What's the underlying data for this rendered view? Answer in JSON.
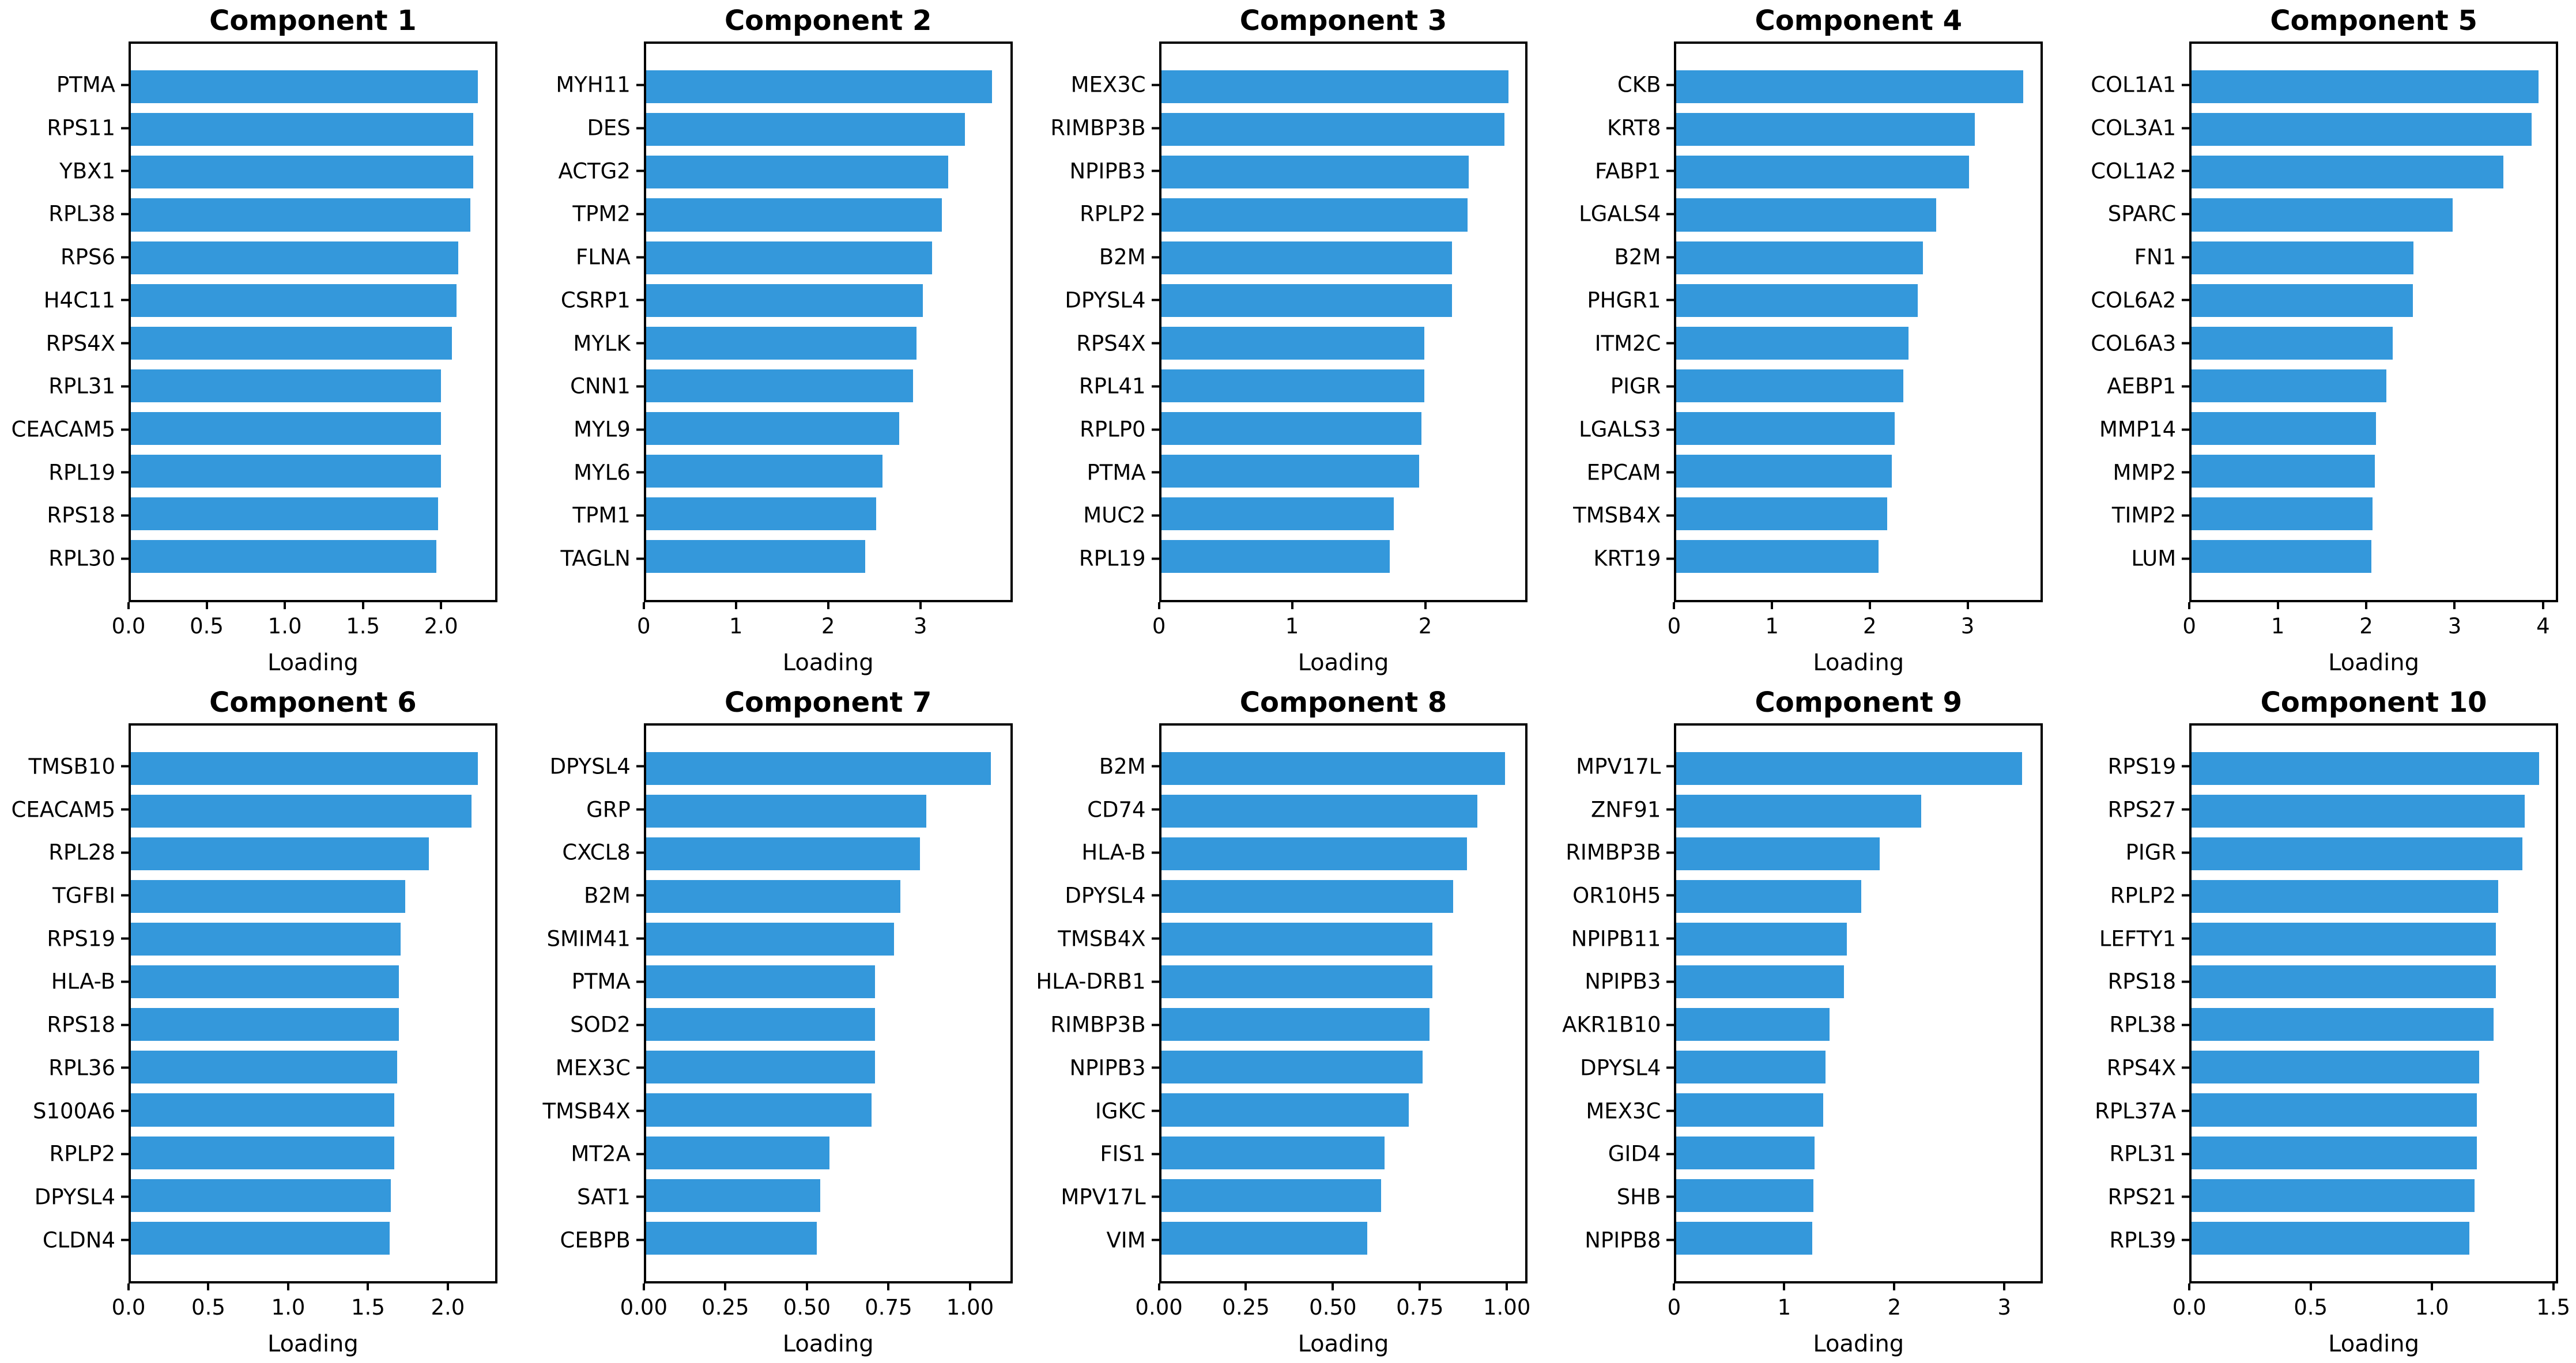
{
  "figure": {
    "background_color": "#ffffff",
    "bar_color": "#3498db",
    "text_color": "#000000",
    "xlabel": "Loading"
  },
  "chart_data": [
    {
      "type": "bar",
      "title": "Component 1",
      "orientation": "horizontal",
      "categories": [
        "PTMA",
        "RPS11",
        "YBX1",
        "RPL38",
        "RPS6",
        "H4C11",
        "RPS4X",
        "RPL31",
        "CEACAM5",
        "RPL19",
        "RPS18",
        "RPL30"
      ],
      "values": [
        2.25,
        2.22,
        2.22,
        2.2,
        2.12,
        2.11,
        2.08,
        2.01,
        2.01,
        2.01,
        1.99,
        1.98
      ],
      "xlabel": "Loading",
      "xticks": [
        0.0,
        0.5,
        1.0,
        1.5,
        2.0
      ],
      "xtick_labels": [
        "0.0",
        "0.5",
        "1.0",
        "1.5",
        "2.0"
      ],
      "xlim": [
        0,
        2.36
      ],
      "grid": false
    },
    {
      "type": "bar",
      "title": "Component 2",
      "orientation": "horizontal",
      "categories": [
        "MYH11",
        "DES",
        "ACTG2",
        "TPM2",
        "FLNA",
        "CSRP1",
        "MYLK",
        "CNN1",
        "MYL9",
        "MYL6",
        "TPM1",
        "TAGLN"
      ],
      "values": [
        3.8,
        3.5,
        3.32,
        3.25,
        3.14,
        3.04,
        2.97,
        2.93,
        2.78,
        2.6,
        2.53,
        2.41
      ],
      "xlabel": "Loading",
      "xticks": [
        0,
        1,
        2,
        3
      ],
      "xtick_labels": [
        "0",
        "1",
        "2",
        "3"
      ],
      "xlim": [
        0,
        4.0
      ],
      "grid": false
    },
    {
      "type": "bar",
      "title": "Component 3",
      "orientation": "horizontal",
      "categories": [
        "MEX3C",
        "RIMBP3B",
        "NPIPB3",
        "RPLP2",
        "B2M",
        "DPYSL4",
        "RPS4X",
        "RPL41",
        "RPLP0",
        "PTMA",
        "MUC2",
        "RPL19"
      ],
      "values": [
        2.64,
        2.61,
        2.34,
        2.33,
        2.21,
        2.21,
        2.0,
        2.0,
        1.98,
        1.96,
        1.77,
        1.74
      ],
      "xlabel": "Loading",
      "xticks": [
        0,
        1,
        2
      ],
      "xtick_labels": [
        "0",
        "1",
        "2"
      ],
      "xlim": [
        0,
        2.77
      ],
      "grid": false
    },
    {
      "type": "bar",
      "title": "Component 4",
      "orientation": "horizontal",
      "categories": [
        "CKB",
        "KRT8",
        "FABP1",
        "LGALS4",
        "B2M",
        "PHGR1",
        "ITM2C",
        "PIGR",
        "LGALS3",
        "EPCAM",
        "TMSB4X",
        "KRT19"
      ],
      "values": [
        3.59,
        3.09,
        3.03,
        2.69,
        2.55,
        2.5,
        2.4,
        2.35,
        2.26,
        2.23,
        2.18,
        2.09
      ],
      "xlabel": "Loading",
      "xticks": [
        0,
        1,
        2,
        3
      ],
      "xtick_labels": [
        "0",
        "1",
        "2",
        "3"
      ],
      "xlim": [
        0,
        3.77
      ],
      "grid": false
    },
    {
      "type": "bar",
      "title": "Component 5",
      "orientation": "horizontal",
      "categories": [
        "COL1A1",
        "COL3A1",
        "COL1A2",
        "SPARC",
        "FN1",
        "COL6A2",
        "COL6A3",
        "AEBP1",
        "MMP14",
        "MMP2",
        "TIMP2",
        "LUM"
      ],
      "values": [
        3.97,
        3.89,
        3.57,
        2.99,
        2.54,
        2.53,
        2.3,
        2.23,
        2.11,
        2.1,
        2.07,
        2.06
      ],
      "xlabel": "Loading",
      "xticks": [
        0,
        1,
        2,
        3,
        4
      ],
      "xtick_labels": [
        "0",
        "1",
        "2",
        "3",
        "4"
      ],
      "xlim": [
        0,
        4.17
      ],
      "grid": false
    },
    {
      "type": "bar",
      "title": "Component 6",
      "orientation": "horizontal",
      "categories": [
        "TMSB10",
        "CEACAM5",
        "RPL28",
        "TGFBI",
        "RPS19",
        "HLA-B",
        "RPS18",
        "RPL36",
        "S100A6",
        "RPLP2",
        "DPYSL4",
        "CLDN4"
      ],
      "values": [
        2.2,
        2.16,
        1.89,
        1.74,
        1.71,
        1.7,
        1.7,
        1.69,
        1.67,
        1.67,
        1.65,
        1.64
      ],
      "xlabel": "Loading",
      "xticks": [
        0.0,
        0.5,
        1.0,
        1.5,
        2.0
      ],
      "xtick_labels": [
        "0.0",
        "0.5",
        "1.0",
        "1.5",
        "2.0"
      ],
      "xlim": [
        0,
        2.31
      ],
      "grid": false
    },
    {
      "type": "bar",
      "title": "Component 7",
      "orientation": "horizontal",
      "categories": [
        "DPYSL4",
        "GRP",
        "CXCL8",
        "B2M",
        "SMIM41",
        "PTMA",
        "SOD2",
        "MEX3C",
        "TMSB4X",
        "MT2A",
        "SAT1",
        "CEBPB"
      ],
      "values": [
        1.07,
        0.87,
        0.85,
        0.79,
        0.77,
        0.71,
        0.71,
        0.71,
        0.7,
        0.57,
        0.54,
        0.53
      ],
      "xlabel": "Loading",
      "xticks": [
        0.0,
        0.25,
        0.5,
        0.75,
        1.0
      ],
      "xtick_labels": [
        "0.00",
        "0.25",
        "0.50",
        "0.75",
        "1.00"
      ],
      "xlim": [
        0,
        1.13
      ],
      "grid": false
    },
    {
      "type": "bar",
      "title": "Component 8",
      "orientation": "horizontal",
      "categories": [
        "B2M",
        "CD74",
        "HLA-B",
        "DPYSL4",
        "TMSB4X",
        "HLA-DRB1",
        "RIMBP3B",
        "NPIPB3",
        "IGKC",
        "FIS1",
        "MPV17L",
        "VIM"
      ],
      "values": [
        1.0,
        0.92,
        0.89,
        0.85,
        0.79,
        0.79,
        0.78,
        0.76,
        0.72,
        0.65,
        0.64,
        0.6
      ],
      "xlabel": "Loading",
      "xticks": [
        0.0,
        0.25,
        0.5,
        0.75,
        1.0
      ],
      "xtick_labels": [
        "0.00",
        "0.25",
        "0.50",
        "0.75",
        "1.00"
      ],
      "xlim": [
        0,
        1.06
      ],
      "grid": false
    },
    {
      "type": "bar",
      "title": "Component 9",
      "orientation": "horizontal",
      "categories": [
        "MPV17L",
        "ZNF91",
        "RIMBP3B",
        "OR10H5",
        "NPIPB11",
        "NPIPB3",
        "AKR1B10",
        "DPYSL4",
        "MEX3C",
        "GID4",
        "SHB",
        "NPIPB8"
      ],
      "values": [
        3.18,
        2.25,
        1.87,
        1.7,
        1.57,
        1.54,
        1.41,
        1.37,
        1.35,
        1.27,
        1.26,
        1.25
      ],
      "xlabel": "Loading",
      "xticks": [
        0,
        1,
        2,
        3
      ],
      "xtick_labels": [
        "0",
        "1",
        "2",
        "3"
      ],
      "xlim": [
        0,
        3.35
      ],
      "grid": false
    },
    {
      "type": "bar",
      "title": "Component 10",
      "orientation": "horizontal",
      "categories": [
        "RPS19",
        "RPS27",
        "PIGR",
        "RPLP2",
        "LEFTY1",
        "RPS18",
        "RPL38",
        "RPS4X",
        "RPL37A",
        "RPL31",
        "RPS21",
        "RPL39"
      ],
      "values": [
        1.45,
        1.39,
        1.38,
        1.28,
        1.27,
        1.27,
        1.26,
        1.2,
        1.19,
        1.19,
        1.18,
        1.16
      ],
      "xlabel": "Loading",
      "xticks": [
        0.0,
        0.5,
        1.0,
        1.5
      ],
      "xtick_labels": [
        "0.0",
        "0.5",
        "1.0",
        "1.5"
      ],
      "xlim": [
        0,
        1.52
      ],
      "grid": false
    }
  ]
}
